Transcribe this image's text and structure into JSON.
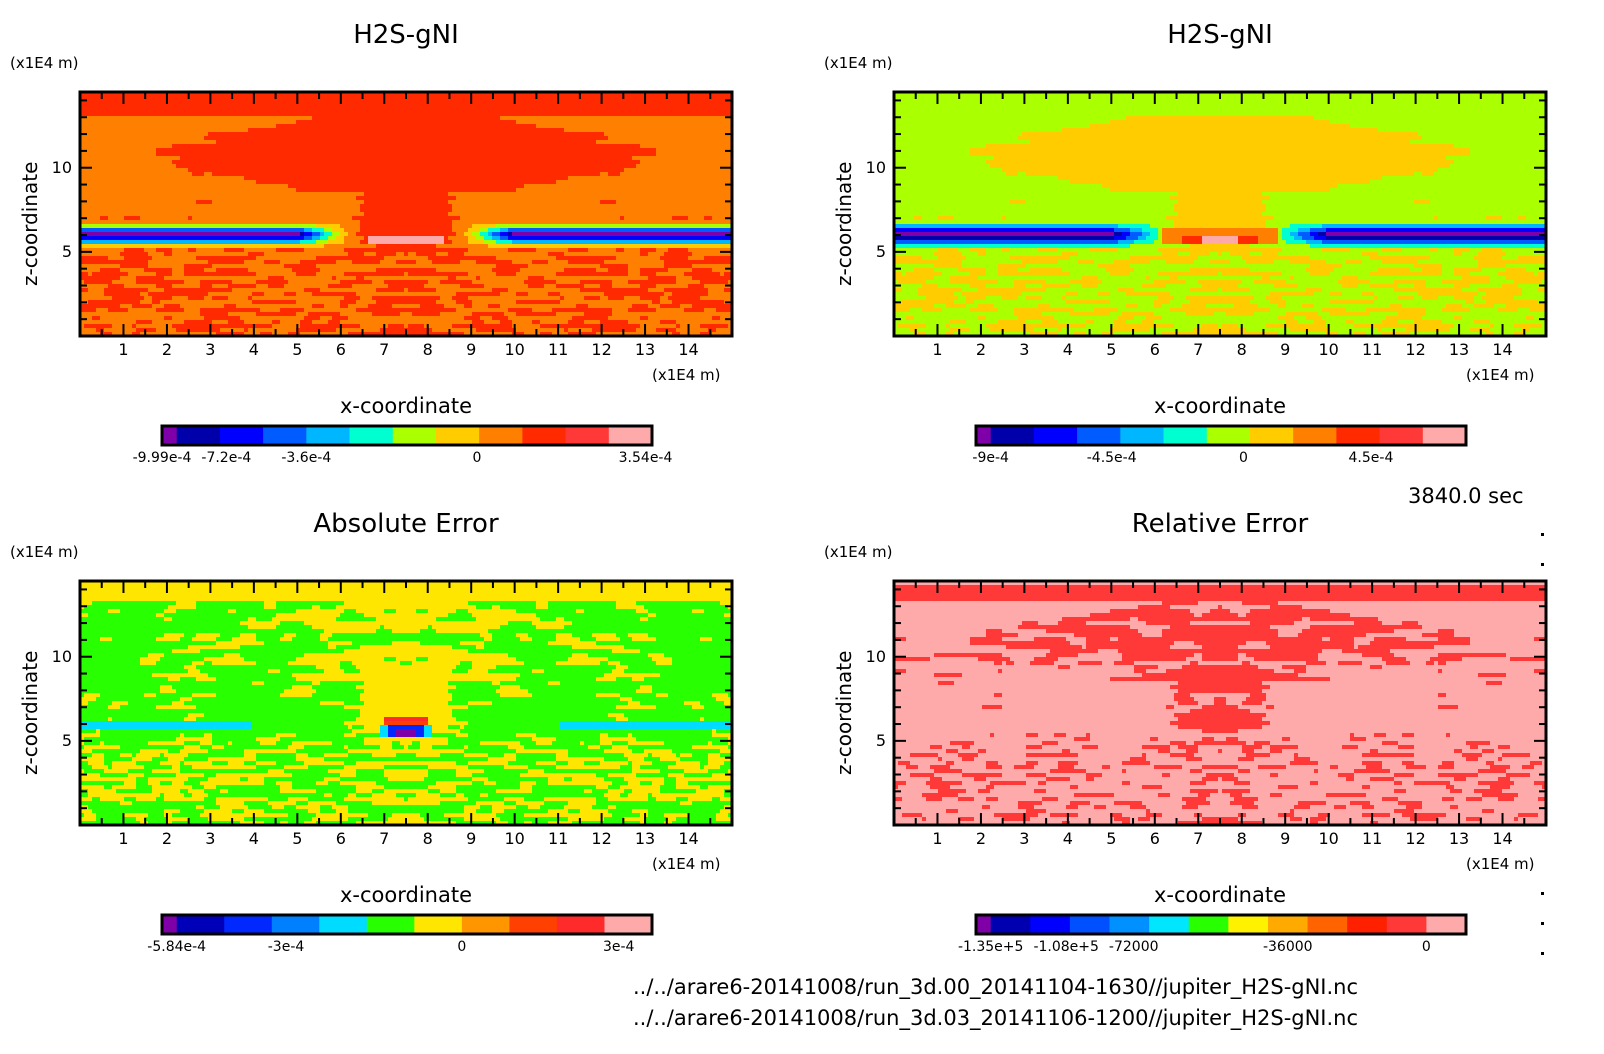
{
  "chart_data": [
    {
      "type": "heatmap",
      "id": "tl",
      "title": "H2S-gNI",
      "xlabel": "x-coordinate",
      "ylabel": "z-coordinate",
      "x_unit": "(x1E4 m)",
      "y_unit": "(x1E4 m)",
      "xlim": [
        0,
        15
      ],
      "ylim": [
        0,
        14.5
      ],
      "xticks": [
        "1",
        "2",
        "3",
        "4",
        "5",
        "6",
        "7",
        "8",
        "9",
        "10",
        "11",
        "12",
        "13",
        "14"
      ],
      "yticks": [
        "5",
        "10"
      ],
      "pattern": "field",
      "colorbar": {
        "colors": [
          "#7f00a8",
          "#0000aa",
          "#0000ff",
          "#005cff",
          "#00b6ff",
          "#00ffd0",
          "#aaff00",
          "#ffcc00",
          "#ff8000",
          "#ff2a00",
          "#ff3838",
          "#ffaaaa"
        ],
        "labels": [
          "-9.99e-4",
          "-7.2e-4",
          "-3.6e-4",
          "0",
          "3.54e-4"
        ],
        "label_levels": [
          0,
          1.05,
          4.0,
          7.95,
          11.85
        ],
        "min": -0.000999,
        "max": 0.000354
      },
      "bg_level": 8,
      "dark_level": 9
    },
    {
      "type": "heatmap",
      "id": "tr",
      "title": "H2S-gNI",
      "xlabel": "x-coordinate",
      "ylabel": "z-coordinate",
      "x_unit": "(x1E4 m)",
      "y_unit": "(x1E4 m)",
      "xlim": [
        0,
        15
      ],
      "ylim": [
        0,
        14.5
      ],
      "xticks": [
        "1",
        "2",
        "3",
        "4",
        "5",
        "6",
        "7",
        "8",
        "9",
        "10",
        "11",
        "12",
        "13",
        "14"
      ],
      "yticks": [
        "5",
        "10"
      ],
      "pattern": "field2",
      "colorbar": {
        "colors": [
          "#7f00a8",
          "#0000aa",
          "#0000ff",
          "#005cff",
          "#00b6ff",
          "#00ffd0",
          "#aaff00",
          "#ffcc00",
          "#ff8000",
          "#ff2a00",
          "#ff3838",
          "#ffaaaa"
        ],
        "labels": [
          "-9e-4",
          "-4.5e-4",
          "0",
          "4.5e-4"
        ],
        "label_levels": [
          0.5,
          3.8,
          6.85,
          9.8
        ],
        "min": -0.0009,
        "max": 0.00063
      },
      "bg_level": 6,
      "dark_level": 7
    },
    {
      "type": "heatmap",
      "id": "bl",
      "title": "Absolute Error",
      "xlabel": "x-coordinate",
      "ylabel": "z-coordinate",
      "x_unit": "(x1E4 m)",
      "y_unit": "(x1E4 m)",
      "xlim": [
        0,
        15
      ],
      "ylim": [
        0,
        14.5
      ],
      "xticks": [
        "1",
        "2",
        "3",
        "4",
        "5",
        "6",
        "7",
        "8",
        "9",
        "10",
        "11",
        "12",
        "13",
        "14"
      ],
      "yticks": [
        "5",
        "10"
      ],
      "pattern": "abs",
      "colorbar": {
        "colors": [
          "#8000a8",
          "#0000b8",
          "#0028ff",
          "#0080ff",
          "#00dcff",
          "#28ff00",
          "#ffe600",
          "#ff9600",
          "#ff4000",
          "#ff2a2a",
          "#ffaaaa"
        ],
        "labels": [
          "-5.84e-4",
          "-3e-4",
          "0",
          "3e-4"
        ],
        "label_levels": [
          0.5,
          3.3,
          7.0,
          10.3
        ],
        "min": -0.000584,
        "max": 0.00036
      },
      "bg_level": 5,
      "dark_level": 6
    },
    {
      "type": "heatmap",
      "id": "br",
      "title": "Relative Error",
      "xlabel": "x-coordinate",
      "ylabel": "z-coordinate",
      "x_unit": "(x1E4 m)",
      "y_unit": "(x1E4 m)",
      "xlim": [
        0,
        15
      ],
      "ylim": [
        0,
        14.5
      ],
      "xticks": [
        "1",
        "2",
        "3",
        "4",
        "5",
        "6",
        "7",
        "8",
        "9",
        "10",
        "11",
        "12",
        "13",
        "14"
      ],
      "yticks": [
        "5",
        "10"
      ],
      "pattern": "rel",
      "colorbar": {
        "colors": [
          "#8000a8",
          "#0000b0",
          "#0000ff",
          "#0050ff",
          "#0090ff",
          "#00e6ff",
          "#28ff00",
          "#fff200",
          "#ffaa00",
          "#ff6400",
          "#ff2000",
          "#ff3838",
          "#ffaaaa"
        ],
        "labels": [
          "-1.35e+5",
          "-1.08e+5",
          "-72000",
          "-36000",
          "0"
        ],
        "label_levels": [
          0.5,
          1.5,
          4.5,
          8.5,
          12.0
        ],
        "min": -135000.0,
        "max": 2000
      },
      "bg_level": 12,
      "dark_level": 11
    }
  ],
  "timestamp": "3840.0 sec",
  "files": [
    "../../arare6-20141008/run_3d.00_20141104-1630//jupiter_H2S-gNI.nc",
    "../../arare6-20141008/run_3d.03_20141106-1200//jupiter_H2S-gNI.nc"
  ]
}
